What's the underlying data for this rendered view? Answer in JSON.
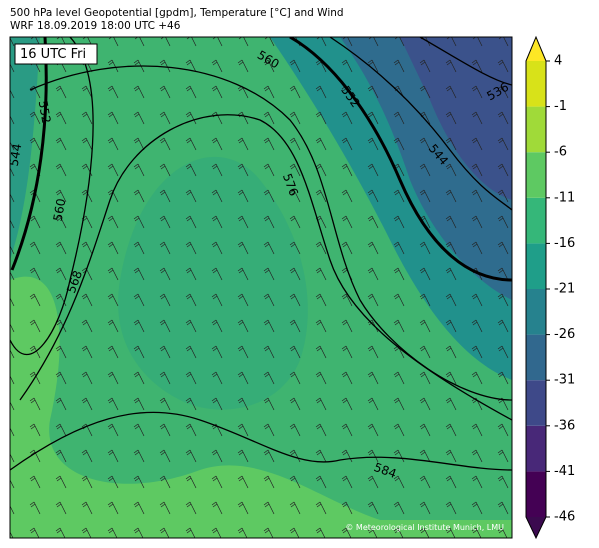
{
  "header": {
    "title": "500 hPa level Geopotential [gpdm], Temperature [°C] and Wind",
    "subtitle": "WRF 18.09.2019 18:00 UTC +46"
  },
  "map": {
    "time_label": "16 UTC Fri",
    "contour_labels": [
      "552",
      "544",
      "560",
      "568",
      "576",
      "560",
      "552",
      "544",
      "536",
      "584"
    ],
    "credit": "© Meteorological Institute Munich, LMU"
  },
  "colorbar": {
    "ticks": [
      -46,
      -41,
      -36,
      -31,
      -26,
      -21,
      -16,
      -11,
      -6,
      -1,
      4
    ],
    "colors": [
      "#440154",
      "#482878",
      "#3e4989",
      "#31688e",
      "#26828e",
      "#1f9e89",
      "#35b779",
      "#5ec962",
      "#a0da39",
      "#d8e219"
    ],
    "under_color": "#3b0a4f",
    "over_color": "#fde725"
  }
}
